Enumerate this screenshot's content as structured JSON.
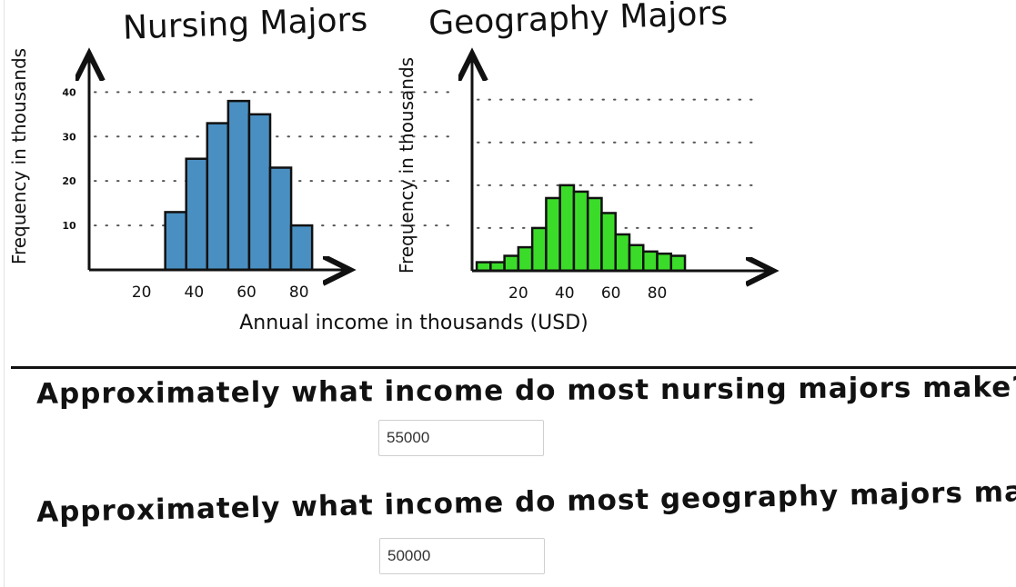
{
  "chart_data": [
    {
      "type": "bar",
      "title": "Nursing Majors",
      "xlabel": "Annual income in thousands (USD)",
      "ylabel": "Frequency in thousands",
      "x_ticks": [
        "20",
        "40",
        "60",
        "80"
      ],
      "y_ticks": [
        "10",
        "20",
        "30",
        "40"
      ],
      "xlim": [
        0,
        95
      ],
      "ylim": [
        0,
        46
      ],
      "bin_width": 8,
      "bins": [
        {
          "x": 33,
          "y": 13
        },
        {
          "x": 41,
          "y": 25
        },
        {
          "x": 49,
          "y": 33
        },
        {
          "x": 57,
          "y": 38
        },
        {
          "x": 65,
          "y": 35
        },
        {
          "x": 73,
          "y": 23
        },
        {
          "x": 81,
          "y": 10
        }
      ],
      "bar_color": "#4a8fc1",
      "grid": "dotted horizontal"
    },
    {
      "type": "bar",
      "title": "Geography Majors",
      "xlabel": "Annual income in thousands (USD)",
      "ylabel": "Frequency in thousands",
      "x_ticks": [
        "20",
        "40",
        "60",
        "80"
      ],
      "y_ticks": [],
      "xlim": [
        0,
        125
      ],
      "ylim": [
        0,
        48
      ],
      "bin_width": 6,
      "bins": [
        {
          "x": 5,
          "y": 2
        },
        {
          "x": 11,
          "y": 2
        },
        {
          "x": 17,
          "y": 3.5
        },
        {
          "x": 23,
          "y": 5.5
        },
        {
          "x": 29,
          "y": 10
        },
        {
          "x": 35,
          "y": 17
        },
        {
          "x": 41,
          "y": 20
        },
        {
          "x": 47,
          "y": 18.5
        },
        {
          "x": 53,
          "y": 17
        },
        {
          "x": 59,
          "y": 13.5
        },
        {
          "x": 65,
          "y": 8.5
        },
        {
          "x": 71,
          "y": 6
        },
        {
          "x": 77,
          "y": 4.5
        },
        {
          "x": 83,
          "y": 4
        },
        {
          "x": 89,
          "y": 3.5
        }
      ],
      "bar_color": "#3bdc29",
      "grid": "dotted horizontal"
    }
  ],
  "questions": [
    {
      "text": "Approximately what income do most nursing majors make?",
      "answer": "55000"
    },
    {
      "text": "Approximately what income do most geography majors make?",
      "answer": "50000"
    }
  ]
}
